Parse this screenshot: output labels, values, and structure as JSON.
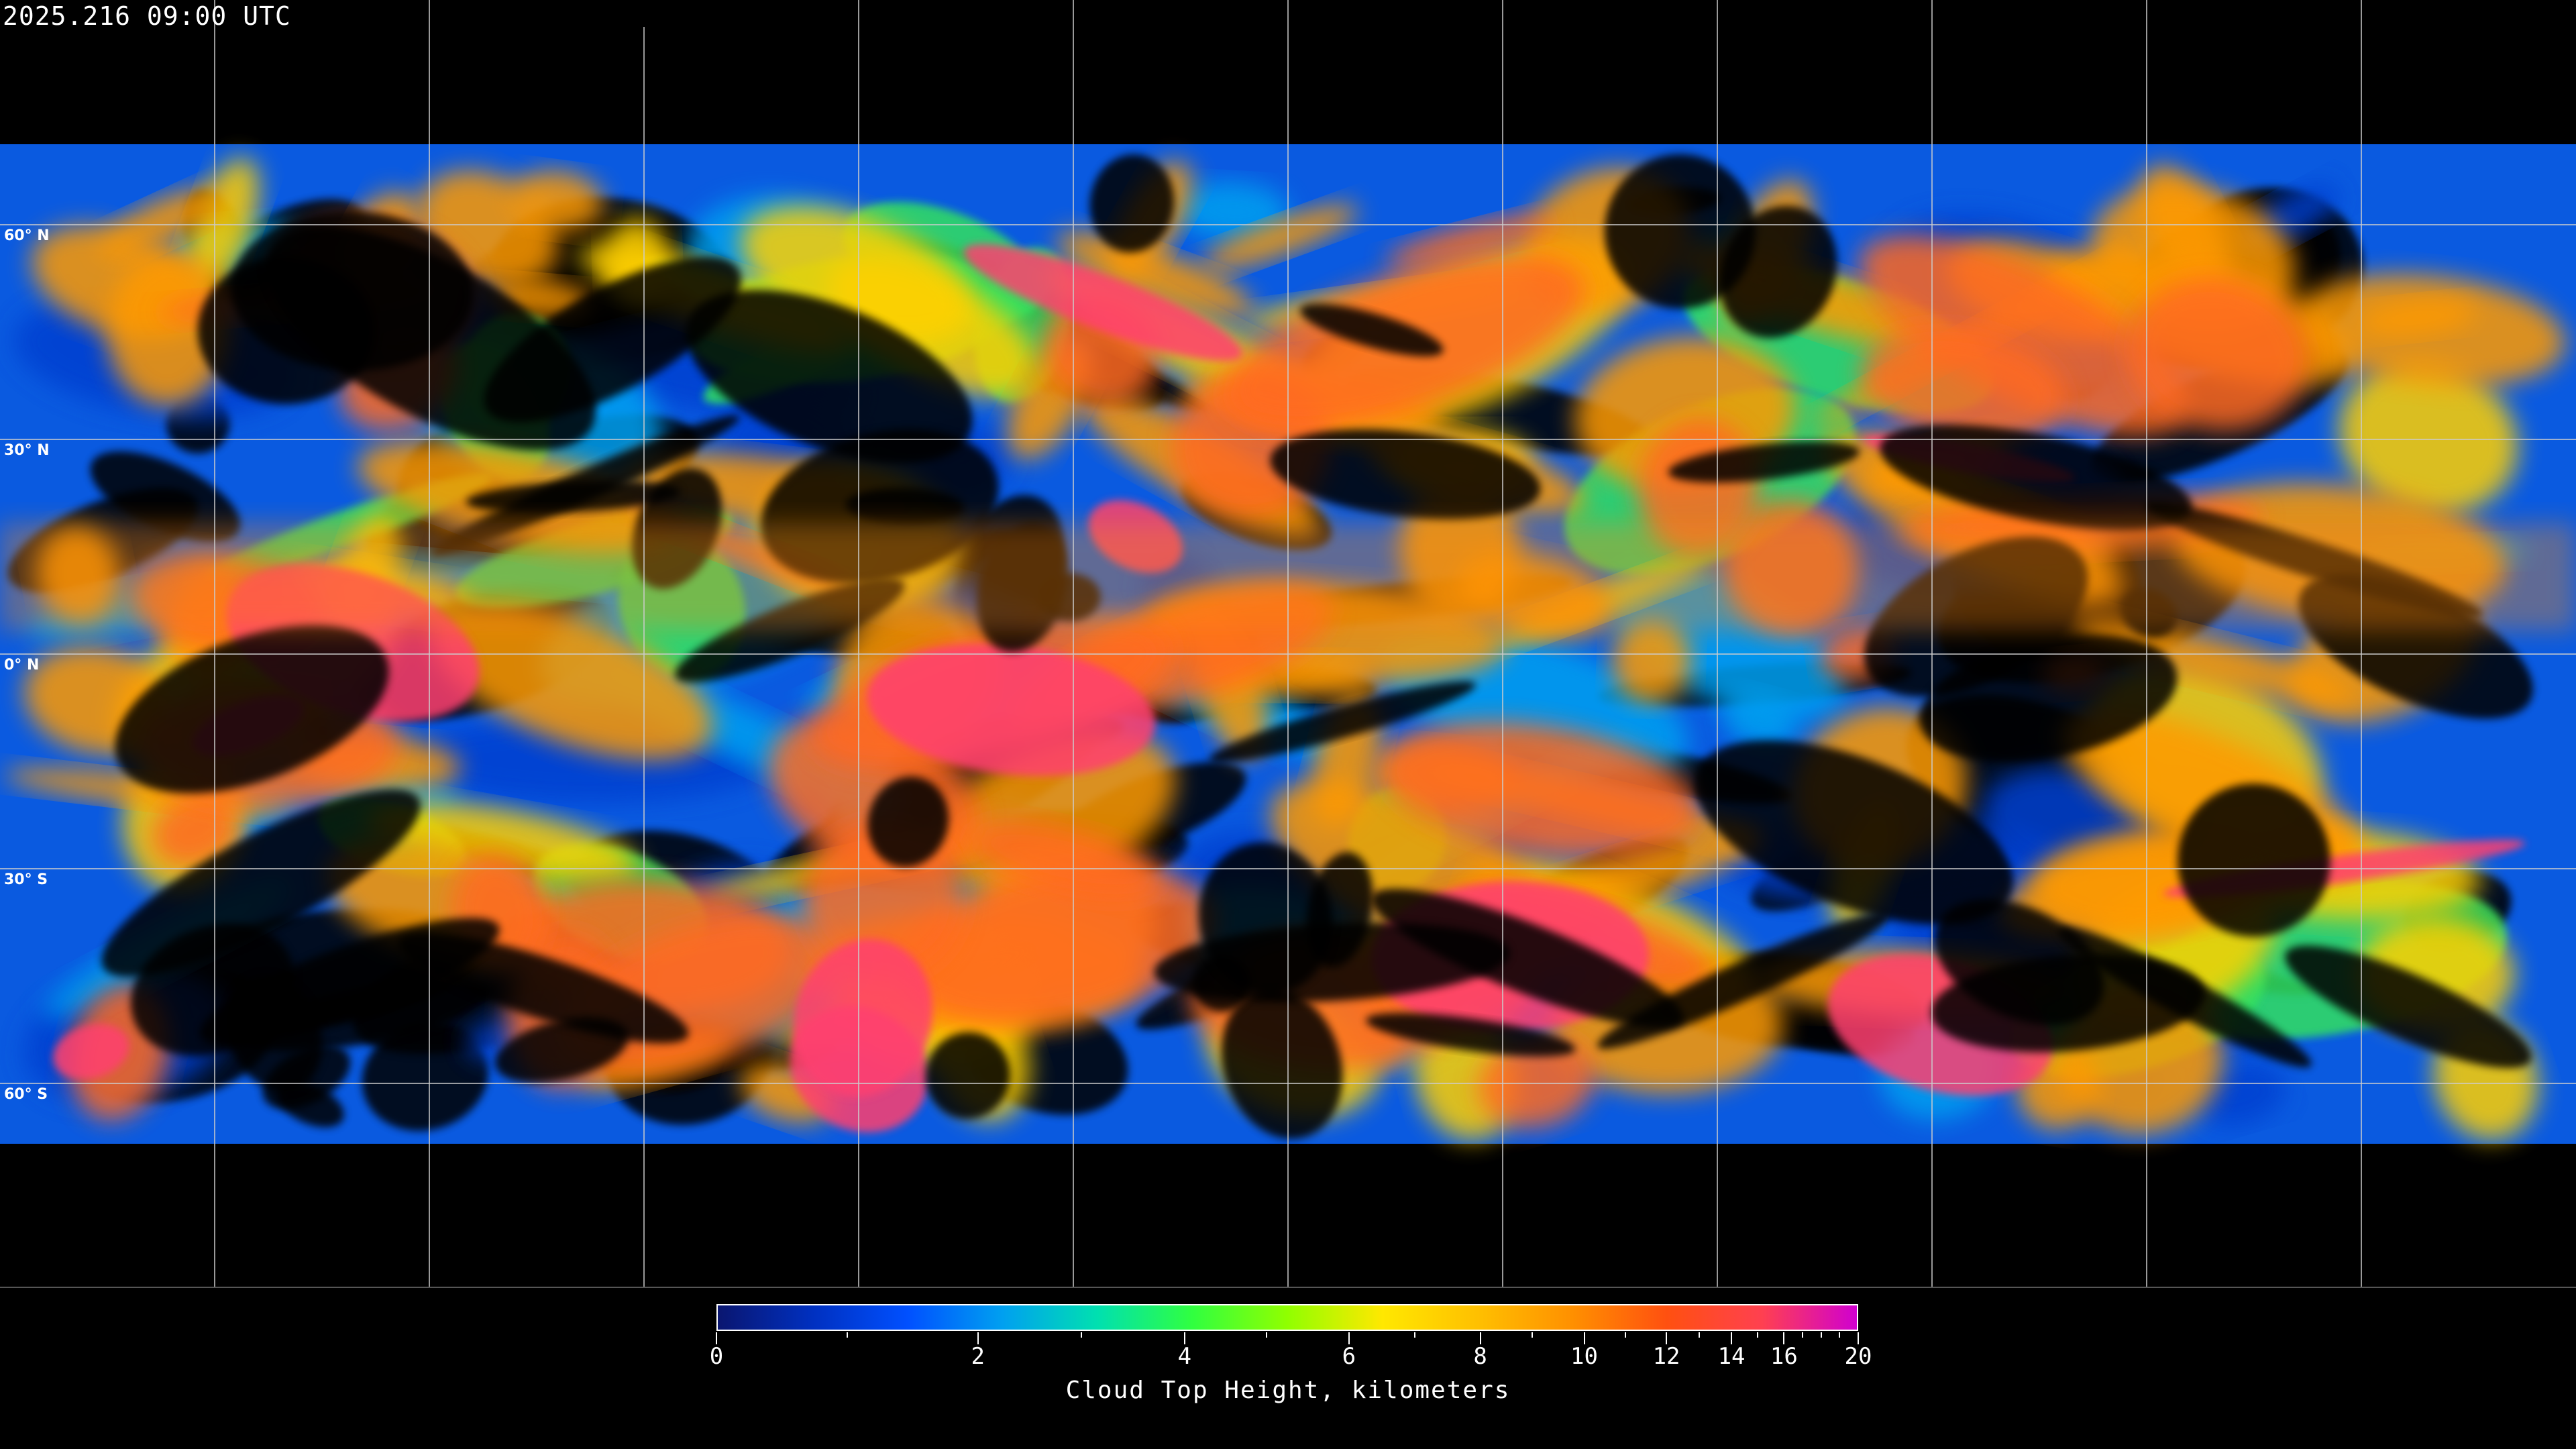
{
  "header": {
    "timestamp": "2025.216 09:00 UTC"
  },
  "map": {
    "latitude_labels": [
      "60° N",
      "30° N",
      "0° N",
      "30° S",
      "60° S"
    ],
    "latitudes": [
      60,
      30,
      0,
      -30,
      -60
    ],
    "longitude_gridlines": 11,
    "background_color": "#000000",
    "grid_color": "#cccccc",
    "coastline_color": "#ffffff"
  },
  "colorbar": {
    "title": "Cloud Top Height, kilometers",
    "min": 0,
    "max": 20,
    "major_ticks": [
      0,
      2,
      4,
      6,
      8,
      10,
      12,
      14,
      16,
      20
    ],
    "major_tick_labels": [
      "0",
      "2",
      "4",
      "6",
      "8",
      "10",
      "12",
      "14",
      "16",
      "20"
    ],
    "minor_ticks": [
      1,
      3,
      5,
      7,
      9,
      11,
      13,
      15,
      17,
      18,
      19
    ],
    "colors": [
      "#0a1670",
      "#0030c0",
      "#0050ff",
      "#00a0f0",
      "#00e0b0",
      "#30ff40",
      "#90ff00",
      "#ffe800",
      "#ffc000",
      "#ff9000",
      "#ff5010",
      "#ff4050",
      "#d000d0"
    ]
  }
}
